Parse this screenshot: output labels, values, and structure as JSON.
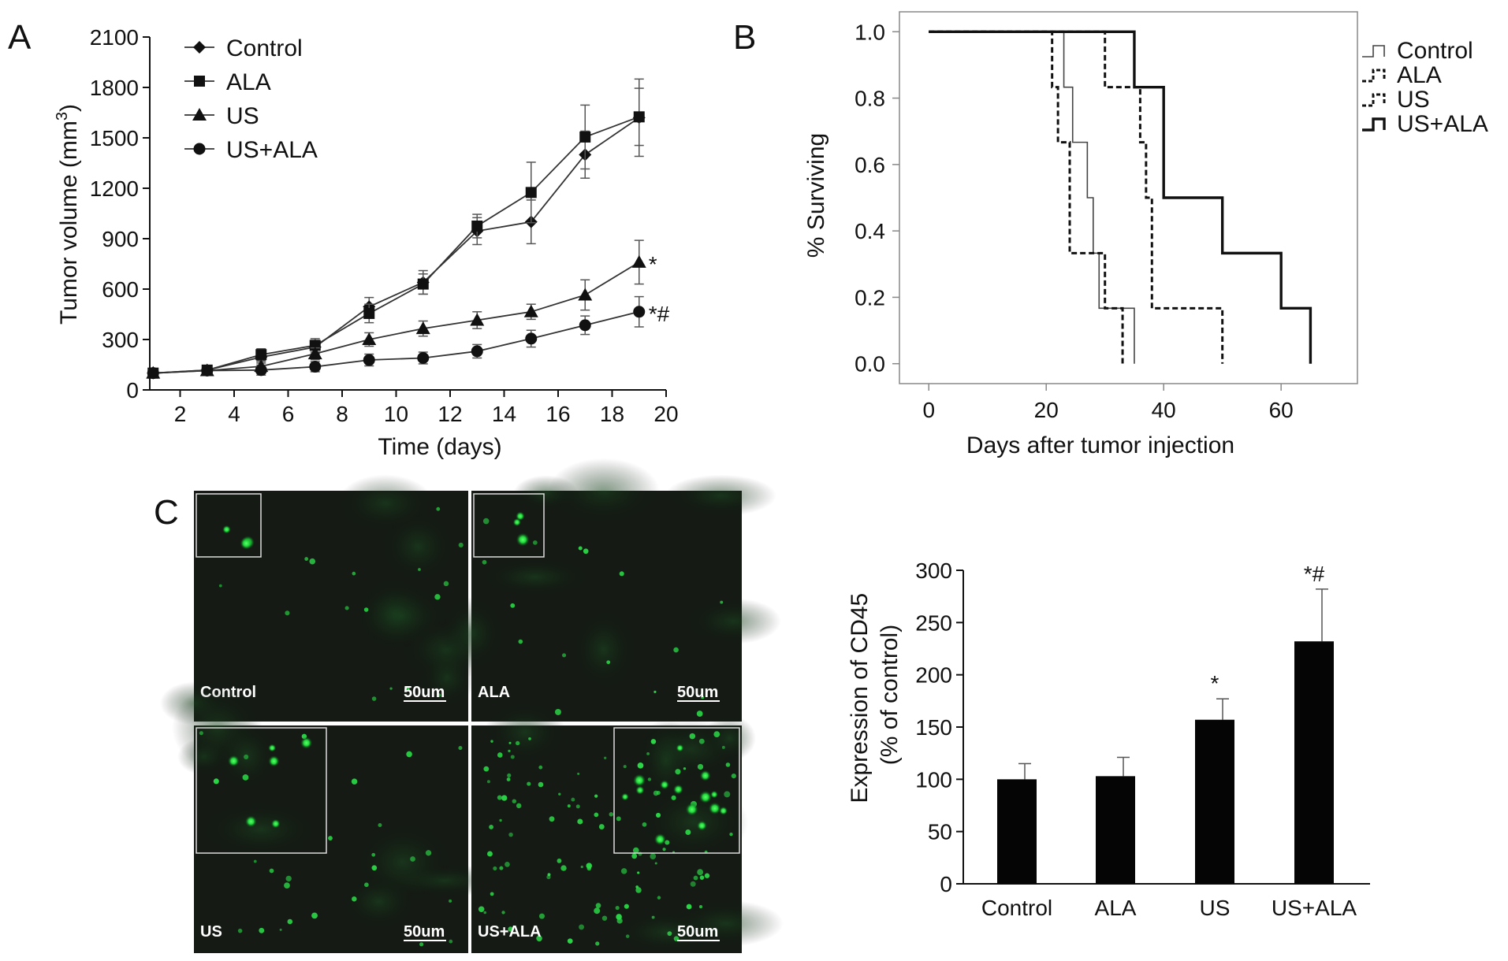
{
  "panels": {
    "A": "A",
    "B": "B",
    "C": "C"
  },
  "chart_data": [
    {
      "id": "panel-a",
      "type": "line",
      "xlabel": "Time (days)",
      "ylabel": "Tumor volume (mm3)",
      "ylabel_parts": [
        "Tumor volume (mm",
        "3",
        ")"
      ],
      "xlim": [
        0,
        20
      ],
      "ylim": [
        0,
        2100
      ],
      "xticks": [
        2,
        4,
        6,
        8,
        10,
        12,
        14,
        16,
        18,
        20
      ],
      "yticks": [
        0,
        300,
        600,
        900,
        1200,
        1500,
        1800,
        2100
      ],
      "legend_position": "top-left",
      "x": [
        1,
        3,
        5,
        7,
        9,
        11,
        13,
        15,
        17,
        19
      ],
      "series": [
        {
          "name": "Control",
          "marker": "diamond",
          "values": [
            100,
            118,
            195,
            255,
            495,
            640,
            945,
            1000,
            1400,
            1620
          ],
          "err": [
            20,
            25,
            35,
            40,
            55,
            70,
            80,
            130,
            140,
            230
          ]
        },
        {
          "name": "ALA",
          "marker": "square",
          "values": [
            100,
            118,
            210,
            265,
            455,
            630,
            975,
            1175,
            1505,
            1625
          ],
          "err": [
            20,
            25,
            35,
            40,
            55,
            60,
            70,
            180,
            190,
            170
          ]
        },
        {
          "name": "US",
          "marker": "triangle",
          "values": [
            100,
            115,
            140,
            215,
            300,
            365,
            415,
            465,
            565,
            760
          ],
          "err": [
            20,
            20,
            30,
            35,
            40,
            45,
            50,
            45,
            90,
            130
          ]
        },
        {
          "name": "US+ALA",
          "marker": "circle",
          "values": [
            100,
            115,
            118,
            138,
            178,
            190,
            230,
            305,
            385,
            465
          ],
          "err": [
            20,
            20,
            30,
            30,
            35,
            35,
            40,
            50,
            55,
            90
          ]
        }
      ],
      "annotations": [
        {
          "text": "*",
          "series": "US"
        },
        {
          "text": "*#",
          "series": "US+ALA"
        }
      ]
    },
    {
      "id": "panel-b",
      "type": "line",
      "subtype": "step",
      "xlabel": "Days after tumor injection",
      "ylabel": "% Surviving",
      "xlim": [
        -5,
        73
      ],
      "ylim": [
        -0.06,
        1.06
      ],
      "xticks": [
        0,
        20,
        40,
        60
      ],
      "yticks": [
        0.0,
        0.2,
        0.4,
        0.6,
        0.8,
        1.0
      ],
      "legend_position": "right",
      "series": [
        {
          "name": "Control",
          "style": "thin",
          "x": [
            0,
            23,
            23,
            24.5,
            24.5,
            27,
            27,
            28,
            28,
            29,
            29,
            35,
            35
          ],
          "y": [
            1.0,
            1.0,
            0.833,
            0.833,
            0.667,
            0.667,
            0.5,
            0.5,
            0.333,
            0.333,
            0.167,
            0.167,
            0.0
          ]
        },
        {
          "name": "ALA",
          "style": "dash",
          "x": [
            0,
            21,
            21,
            22,
            22,
            24,
            24,
            30,
            30,
            33,
            33
          ],
          "y": [
            1.0,
            1.0,
            0.833,
            0.833,
            0.667,
            0.667,
            0.333,
            0.333,
            0.167,
            0.167,
            0.0
          ]
        },
        {
          "name": "US",
          "style": "dash",
          "x": [
            0,
            30,
            30,
            36,
            36,
            37,
            37,
            38,
            38,
            50,
            50
          ],
          "y": [
            1.0,
            1.0,
            0.833,
            0.833,
            0.667,
            0.667,
            0.5,
            0.5,
            0.167,
            0.167,
            0.0
          ]
        },
        {
          "name": "US+ALA",
          "style": "thick",
          "x": [
            0,
            35,
            35,
            40,
            40,
            50,
            50,
            60,
            60,
            65,
            65
          ],
          "y": [
            1.0,
            1.0,
            0.833,
            0.833,
            0.5,
            0.5,
            0.333,
            0.333,
            0.167,
            0.167,
            0.0
          ]
        }
      ]
    },
    {
      "id": "panel-c-bar",
      "type": "bar",
      "categories": [
        "Control",
        "ALA",
        "US",
        "US+ALA"
      ],
      "values": [
        100,
        103,
        157,
        232
      ],
      "err": [
        15,
        18,
        20,
        50
      ],
      "ylabel_lines": [
        "Expression of CD45",
        "(% of control)"
      ],
      "ylim": [
        0,
        300
      ],
      "yticks": [
        0,
        50,
        100,
        150,
        200,
        250,
        300
      ],
      "annotations": [
        "",
        "",
        "*",
        "*#"
      ]
    }
  ],
  "micrographs": [
    {
      "label": "Control",
      "scale": "50um"
    },
    {
      "label": "ALA",
      "scale": "50um"
    },
    {
      "label": "US",
      "scale": "50um"
    },
    {
      "label": "US+ALA",
      "scale": "50um"
    }
  ]
}
